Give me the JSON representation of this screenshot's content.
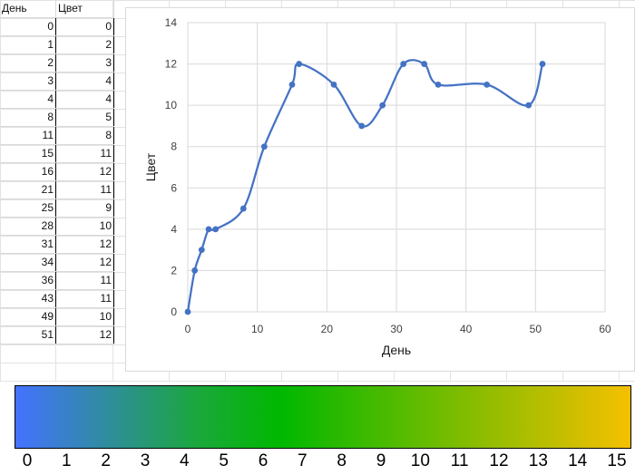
{
  "table": {
    "headers": [
      "День",
      "Цвет"
    ],
    "rows": [
      [
        0,
        0
      ],
      [
        1,
        2
      ],
      [
        2,
        3
      ],
      [
        3,
        4
      ],
      [
        4,
        4
      ],
      [
        8,
        5
      ],
      [
        11,
        8
      ],
      [
        15,
        11
      ],
      [
        16,
        12
      ],
      [
        21,
        11
      ],
      [
        25,
        9
      ],
      [
        28,
        10
      ],
      [
        31,
        12
      ],
      [
        34,
        12
      ],
      [
        36,
        11
      ],
      [
        43,
        11
      ],
      [
        49,
        10
      ],
      [
        51,
        12
      ]
    ]
  },
  "chart_data": {
    "type": "line",
    "xlabel": "День",
    "ylabel": "Цвет",
    "xlim": [
      0,
      60
    ],
    "ylim": [
      0,
      14
    ],
    "xticks": [
      0,
      10,
      20,
      30,
      40,
      50,
      60
    ],
    "yticks": [
      0,
      2,
      4,
      6,
      8,
      10,
      12,
      14
    ],
    "grid": true,
    "smooth": true,
    "series": [
      {
        "x": [
          0,
          1,
          2,
          3,
          4,
          8,
          11,
          15,
          16,
          21,
          25,
          28,
          31,
          34,
          36,
          43,
          49,
          51
        ],
        "y": [
          0,
          2,
          3,
          4,
          4,
          5,
          8,
          11,
          12,
          11,
          9,
          10,
          12,
          12,
          11,
          11,
          10,
          12
        ],
        "color": "#4472c4"
      }
    ]
  },
  "color_scale": {
    "labels": [
      "0",
      "1",
      "2",
      "3",
      "4",
      "5",
      "6",
      "7",
      "8",
      "9",
      "10",
      "11",
      "12",
      "13",
      "14",
      "15"
    ],
    "stops": [
      "#4472ff",
      "#1aa83a",
      "#00b800",
      "#f5c000"
    ]
  }
}
